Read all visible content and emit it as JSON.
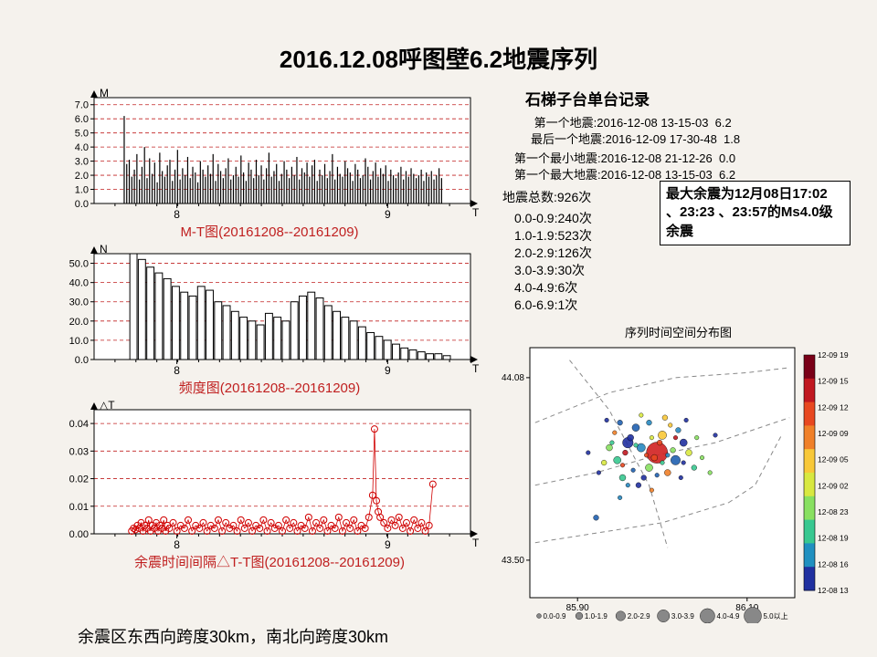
{
  "title": "2016.12.08呼图壁6.2地震序列",
  "footer": "余震区东西向跨度30km，南北向跨度30km",
  "colors": {
    "background": "#f5f2ed",
    "plot_bg": "#ffffff",
    "axis": "#000000",
    "caption": "#c02020",
    "gridline": "#c02020",
    "mt_drop": "#000000",
    "freq_bar": "#000000",
    "dtt_marker": "#d00000"
  },
  "mt_chart": {
    "caption": "M-T图(20161208--20161209)",
    "y_label": "M",
    "x_label": "T",
    "y_ticks": [
      0.0,
      1.0,
      2.0,
      3.0,
      4.0,
      5.0,
      6.0,
      7.0
    ],
    "x_ticks": [
      {
        "pos": 0.22,
        "label": "8"
      },
      {
        "pos": 0.78,
        "label": "9"
      }
    ],
    "ylim": [
      0,
      7.5
    ],
    "gridlines": [
      1,
      2,
      3,
      4,
      5,
      6,
      7
    ],
    "values": [
      6.2,
      2.8,
      3.1,
      1.9,
      2.4,
      3.5,
      1.7,
      2.6,
      4.0,
      1.8,
      3.2,
      2.1,
      2.9,
      1.5,
      3.6,
      2.3,
      1.9,
      2.7,
      3.1,
      1.6,
      2.4,
      3.8,
      1.7,
      2.5,
      2.0,
      3.3,
      1.8,
      2.6,
      2.2,
      1.5,
      3.0,
      2.4,
      1.9,
      2.7,
      2.1,
      3.5,
      1.6,
      2.8,
      2.3,
      1.8,
      2.5,
      3.2,
      1.7,
      2.0,
      2.6,
      1.9,
      3.4,
      2.2,
      1.6,
      2.9,
      2.4,
      1.8,
      3.1,
      2.0,
      2.7,
      1.7,
      2.5,
      3.6,
      1.9,
      2.3,
      2.8,
      1.6,
      2.1,
      3.0,
      2.4,
      1.8,
      2.6,
      2.0,
      3.3,
      1.7,
      2.5,
      2.2,
      2.9,
      1.9,
      2.7,
      3.1,
      1.6,
      2.4,
      2.0,
      2.8,
      1.8,
      2.3,
      3.5,
      1.7,
      2.6,
      2.1,
      1.9,
      3.0,
      2.5,
      2.2,
      1.6,
      2.8,
      2.4,
      1.8,
      2.0,
      3.2,
      2.6,
      1.7,
      2.3,
      2.9,
      1.9,
      2.5,
      2.1,
      2.7,
      1.6,
      2.4,
      2.0,
      1.8,
      2.2,
      2.6,
      1.7,
      2.3,
      1.9,
      2.5,
      2.1,
      1.8,
      2.0,
      2.4,
      1.6,
      2.2,
      1.9,
      2.3,
      1.7,
      2.0,
      2.5,
      1.8
    ]
  },
  "freq_chart": {
    "caption": "频度图(20161208--20161209)",
    "y_label": "N",
    "x_label": "T",
    "y_ticks": [
      0,
      10,
      20,
      30,
      40,
      50
    ],
    "x_ticks": [
      {
        "pos": 0.22,
        "label": "8"
      },
      {
        "pos": 0.78,
        "label": "9"
      }
    ],
    "ylim": [
      0,
      55
    ],
    "gridlines": [
      10,
      20,
      30,
      40,
      50
    ],
    "values": [
      0,
      0,
      55,
      52,
      48,
      45,
      42,
      38,
      35,
      33,
      38,
      36,
      30,
      28,
      25,
      22,
      20,
      18,
      24,
      22,
      20,
      30,
      33,
      35,
      32,
      28,
      25,
      22,
      20,
      17,
      14,
      12,
      10,
      8,
      6,
      5,
      4,
      3,
      3,
      2
    ]
  },
  "dtt_chart": {
    "caption": "余震时间间隔△T-T图(20161208--20161209)",
    "y_label": "△T",
    "x_label": "T",
    "y_ticks": [
      "0.00",
      "0.01",
      "0.02",
      "0.03",
      "0.04"
    ],
    "x_ticks": [
      {
        "pos": 0.22,
        "label": "8"
      },
      {
        "pos": 0.78,
        "label": "9"
      }
    ],
    "ylim": [
      0,
      0.045
    ],
    "gridlines": [
      0.01,
      0.02,
      0.03,
      0.04
    ],
    "points": [
      [
        0.1,
        0.001
      ],
      [
        0.105,
        0.002
      ],
      [
        0.11,
        0.0015
      ],
      [
        0.115,
        0.003
      ],
      [
        0.12,
        0.002
      ],
      [
        0.125,
        0.004
      ],
      [
        0.13,
        0.001
      ],
      [
        0.135,
        0.003
      ],
      [
        0.14,
        0.002
      ],
      [
        0.145,
        0.005
      ],
      [
        0.15,
        0.001
      ],
      [
        0.155,
        0.003
      ],
      [
        0.16,
        0.002
      ],
      [
        0.165,
        0.004
      ],
      [
        0.17,
        0.001
      ],
      [
        0.175,
        0.003
      ],
      [
        0.18,
        0.002
      ],
      [
        0.185,
        0.005
      ],
      [
        0.19,
        0.001
      ],
      [
        0.195,
        0.003
      ],
      [
        0.2,
        0.002
      ],
      [
        0.21,
        0.004
      ],
      [
        0.22,
        0.001
      ],
      [
        0.23,
        0.003
      ],
      [
        0.24,
        0.002
      ],
      [
        0.25,
        0.005
      ],
      [
        0.26,
        0.001
      ],
      [
        0.27,
        0.003
      ],
      [
        0.28,
        0.002
      ],
      [
        0.29,
        0.004
      ],
      [
        0.3,
        0.001
      ],
      [
        0.31,
        0.003
      ],
      [
        0.32,
        0.002
      ],
      [
        0.33,
        0.005
      ],
      [
        0.34,
        0.001
      ],
      [
        0.35,
        0.004
      ],
      [
        0.36,
        0.002
      ],
      [
        0.37,
        0.003
      ],
      [
        0.38,
        0.001
      ],
      [
        0.39,
        0.005
      ],
      [
        0.4,
        0.002
      ],
      [
        0.41,
        0.004
      ],
      [
        0.42,
        0.001
      ],
      [
        0.43,
        0.003
      ],
      [
        0.44,
        0.002
      ],
      [
        0.45,
        0.005
      ],
      [
        0.46,
        0.001
      ],
      [
        0.47,
        0.004
      ],
      [
        0.48,
        0.002
      ],
      [
        0.49,
        0.003
      ],
      [
        0.5,
        0.001
      ],
      [
        0.51,
        0.005
      ],
      [
        0.52,
        0.002
      ],
      [
        0.53,
        0.004
      ],
      [
        0.54,
        0.001
      ],
      [
        0.55,
        0.003
      ],
      [
        0.56,
        0.002
      ],
      [
        0.57,
        0.006
      ],
      [
        0.58,
        0.001
      ],
      [
        0.59,
        0.004
      ],
      [
        0.6,
        0.002
      ],
      [
        0.61,
        0.005
      ],
      [
        0.62,
        0.001
      ],
      [
        0.63,
        0.003
      ],
      [
        0.64,
        0.002
      ],
      [
        0.65,
        0.006
      ],
      [
        0.66,
        0.001
      ],
      [
        0.67,
        0.004
      ],
      [
        0.68,
        0.002
      ],
      [
        0.69,
        0.005
      ],
      [
        0.7,
        0.001
      ],
      [
        0.71,
        0.003
      ],
      [
        0.72,
        0.002
      ],
      [
        0.73,
        0.006
      ],
      [
        0.74,
        0.014
      ],
      [
        0.745,
        0.038
      ],
      [
        0.75,
        0.012
      ],
      [
        0.755,
        0.008
      ],
      [
        0.76,
        0.006
      ],
      [
        0.77,
        0.004
      ],
      [
        0.78,
        0.002
      ],
      [
        0.79,
        0.005
      ],
      [
        0.8,
        0.003
      ],
      [
        0.81,
        0.006
      ],
      [
        0.82,
        0.002
      ],
      [
        0.83,
        0.004
      ],
      [
        0.84,
        0.001
      ],
      [
        0.85,
        0.005
      ],
      [
        0.86,
        0.002
      ],
      [
        0.87,
        0.004
      ],
      [
        0.88,
        0.001
      ],
      [
        0.89,
        0.003
      ],
      [
        0.9,
        0.018
      ]
    ]
  },
  "station": {
    "header": "石梯子台单台记录",
    "records": [
      {
        "label": "第一个地震:",
        "val": "2016-12-08 13-15-03  6.2"
      },
      {
        "label": "最后一个地震:",
        "val": "2016-12-09 17-30-48  1.8"
      }
    ],
    "records2": [
      {
        "label": "第一个最小地震:",
        "val": "2016-12-08 21-12-26  0.0"
      },
      {
        "label": "第一个最大地震:",
        "val": "2016-12-08 13-15-03  6.2"
      }
    ],
    "total": "地震总数:926次",
    "mag_bins": [
      "0.0-0.9:240次",
      "1.0-1.9:523次",
      "2.0-2.9:126次",
      "3.0-3.9:30次",
      "4.0-4.9:6次",
      "6.0-6.9:1次"
    ]
  },
  "note": "最大余震为12月08日17:02 、23:23 、23:57的Ms4.0级余震",
  "scatter": {
    "title": "序列时间空间分布图",
    "x_ticks": [
      {
        "pos": 0.18,
        "label": "85.90"
      },
      {
        "pos": 0.82,
        "label": "86.10"
      }
    ],
    "y_ticks": [
      {
        "pos": 0.12,
        "label": "44.08"
      },
      {
        "pos": 0.85,
        "label": "43.50"
      }
    ],
    "legend_bins": [
      "0.0-0.9",
      "1.0-1.9",
      "2.0-2.9",
      "3.0-3.9",
      "4.0-4.9",
      "5.0以上"
    ],
    "colorbar_labels": [
      "12-09 19",
      "12-09 15",
      "12-09 12",
      "12-09 09",
      "12-09 05",
      "12-09 02",
      "12-08 23",
      "12-08 19",
      "12-08 16",
      "12-08 13"
    ],
    "colorbar_colors": [
      "#7a0018",
      "#c01820",
      "#e84820",
      "#f08028",
      "#f8c838",
      "#d8e840",
      "#88e060",
      "#38c890",
      "#2090c0",
      "#2030a0"
    ],
    "points": [
      [
        0.48,
        0.42,
        0.04,
        "#d02020"
      ],
      [
        0.37,
        0.38,
        0.02,
        "#2030a0"
      ],
      [
        0.55,
        0.45,
        0.018,
        "#2060b0"
      ],
      [
        0.42,
        0.4,
        0.016,
        "#2888c0"
      ],
      [
        0.5,
        0.35,
        0.016,
        "#f8c838"
      ],
      [
        0.33,
        0.45,
        0.014,
        "#38c890"
      ],
      [
        0.58,
        0.38,
        0.014,
        "#2030a0"
      ],
      [
        0.45,
        0.48,
        0.014,
        "#88e060"
      ],
      [
        0.4,
        0.32,
        0.014,
        "#2060b0"
      ],
      [
        0.52,
        0.5,
        0.012,
        "#f08028"
      ],
      [
        0.35,
        0.52,
        0.012,
        "#38c890"
      ],
      [
        0.6,
        0.42,
        0.012,
        "#d8e840"
      ],
      [
        0.38,
        0.36,
        0.012,
        "#2030a0"
      ],
      [
        0.47,
        0.44,
        0.012,
        "#e84820"
      ],
      [
        0.3,
        0.4,
        0.012,
        "#88e060"
      ],
      [
        0.56,
        0.33,
        0.01,
        "#2888c0"
      ],
      [
        0.43,
        0.52,
        0.01,
        "#2030a0"
      ],
      [
        0.51,
        0.28,
        0.01,
        "#f8c838"
      ],
      [
        0.34,
        0.3,
        0.01,
        "#2060b0"
      ],
      [
        0.62,
        0.48,
        0.01,
        "#38c890"
      ],
      [
        0.28,
        0.46,
        0.01,
        "#d8e840"
      ],
      [
        0.49,
        0.38,
        0.01,
        "#e84820"
      ],
      [
        0.41,
        0.55,
        0.01,
        "#2030a0"
      ],
      [
        0.54,
        0.41,
        0.01,
        "#88e060"
      ],
      [
        0.36,
        0.42,
        0.01,
        "#c01820"
      ],
      [
        0.45,
        0.3,
        0.01,
        "#2888c0"
      ],
      [
        0.57,
        0.52,
        0.008,
        "#2030a0"
      ],
      [
        0.32,
        0.34,
        0.008,
        "#f08028"
      ],
      [
        0.5,
        0.46,
        0.008,
        "#38c890"
      ],
      [
        0.39,
        0.49,
        0.008,
        "#2060b0"
      ],
      [
        0.46,
        0.36,
        0.008,
        "#d8e840"
      ],
      [
        0.63,
        0.36,
        0.008,
        "#88e060"
      ],
      [
        0.26,
        0.5,
        0.008,
        "#2030a0"
      ],
      [
        0.53,
        0.31,
        0.008,
        "#f8c838"
      ],
      [
        0.44,
        0.43,
        0.008,
        "#e84820"
      ],
      [
        0.37,
        0.55,
        0.008,
        "#2888c0"
      ],
      [
        0.59,
        0.29,
        0.008,
        "#2030a0"
      ],
      [
        0.31,
        0.38,
        0.008,
        "#38c890"
      ],
      [
        0.48,
        0.51,
        0.008,
        "#2060b0"
      ],
      [
        0.55,
        0.36,
        0.008,
        "#c01820"
      ],
      [
        0.42,
        0.27,
        0.008,
        "#d8e840"
      ],
      [
        0.65,
        0.44,
        0.008,
        "#88e060"
      ],
      [
        0.29,
        0.29,
        0.008,
        "#2030a0"
      ],
      [
        0.46,
        0.57,
        0.008,
        "#f08028"
      ],
      [
        0.52,
        0.43,
        0.008,
        "#2888c0"
      ],
      [
        0.35,
        0.47,
        0.008,
        "#e84820"
      ],
      [
        0.58,
        0.46,
        0.008,
        "#2030a0"
      ],
      [
        0.4,
        0.39,
        0.008,
        "#38c890"
      ],
      [
        0.25,
        0.68,
        0.01,
        "#2060b0"
      ],
      [
        0.7,
        0.35,
        0.008,
        "#2030a0"
      ],
      [
        0.34,
        0.6,
        0.008,
        "#2888c0"
      ],
      [
        0.68,
        0.5,
        0.008,
        "#88e060"
      ],
      [
        0.22,
        0.42,
        0.008,
        "#2030a0"
      ]
    ],
    "faults": [
      [
        [
          0.02,
          0.3
        ],
        [
          0.3,
          0.18
        ],
        [
          0.55,
          0.12
        ],
        [
          0.82,
          0.1
        ],
        [
          0.98,
          0.08
        ]
      ],
      [
        [
          0.02,
          0.55
        ],
        [
          0.25,
          0.5
        ],
        [
          0.48,
          0.43
        ],
        [
          0.7,
          0.38
        ],
        [
          0.98,
          0.28
        ]
      ],
      [
        [
          0.02,
          0.78
        ],
        [
          0.5,
          0.7
        ],
        [
          0.75,
          0.62
        ]
      ],
      [
        [
          0.75,
          0.62
        ],
        [
          0.85,
          0.55
        ],
        [
          0.95,
          0.35
        ]
      ],
      [
        [
          0.15,
          0.05
        ],
        [
          0.3,
          0.25
        ],
        [
          0.45,
          0.55
        ],
        [
          0.52,
          0.8
        ]
      ]
    ]
  }
}
